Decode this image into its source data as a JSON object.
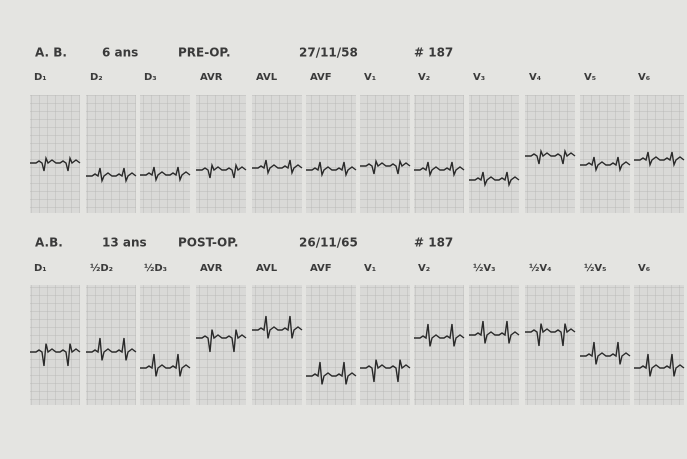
{
  "figure": {
    "rows": [
      {
        "patient": "A. B.",
        "age": "6 ans",
        "phase": "PRE-OP.",
        "date": "27/11/58",
        "record": "# 187",
        "leads": [
          "D₁",
          "D₂",
          "D₃",
          "AVR",
          "AVL",
          "AVF",
          "V₁",
          "V₂",
          "V₃",
          "V₄",
          "V₅",
          "V₆"
        ]
      },
      {
        "patient": "A.B.",
        "age": "13 ans",
        "phase": "POST-OP.",
        "date": "26/11/65",
        "record": "# 187",
        "leads": [
          "D₁",
          "½D₂",
          "½D₃",
          "AVR",
          "AVL",
          "AVF",
          "V₁",
          "V₂",
          "½V₃",
          "½V₄",
          "½V₅",
          "V₆"
        ]
      }
    ]
  }
}
